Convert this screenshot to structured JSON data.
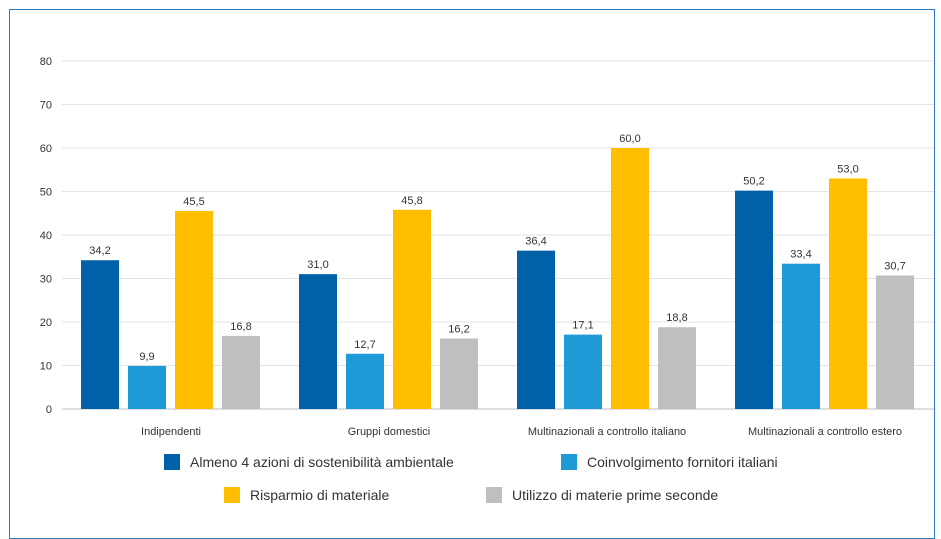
{
  "chart_data": {
    "type": "bar",
    "categories": [
      "Indipendenti",
      "Gruppi domestici",
      "Multinazionali a controllo italiano",
      "Multinazionali a controllo estero"
    ],
    "series": [
      {
        "name": "Almeno 4 azioni di sostenibilità ambientale",
        "color": "#0060a8",
        "values": [
          34.2,
          31.0,
          36.4,
          50.2
        ],
        "labels": [
          "34,2",
          "31,0",
          "36,4",
          "50,2"
        ]
      },
      {
        "name": "Coinvolgimento fornitori italiani",
        "color": "#1e9bd7",
        "values": [
          9.9,
          12.7,
          17.1,
          33.4
        ],
        "labels": [
          "9,9",
          "12,7",
          "17,1",
          "33,4"
        ]
      },
      {
        "name": "Risparmio di materiale",
        "color": "#ffbe00",
        "values": [
          45.5,
          45.8,
          60.0,
          53.0
        ],
        "labels": [
          "45,5",
          "45,8",
          "60,0",
          "53,0"
        ]
      },
      {
        "name": "Utilizzo di materie prime seconde",
        "color": "#bfbfbf",
        "values": [
          16.8,
          16.2,
          18.8,
          30.7
        ],
        "labels": [
          "16,8",
          "16,2",
          "18,8",
          "30,7"
        ]
      }
    ],
    "yticks": [
      "0",
      "10",
      "20",
      "30",
      "40",
      "50",
      "60",
      "70",
      "80"
    ],
    "ylim": [
      0,
      80
    ],
    "grid": true,
    "legend_position": "bottom"
  }
}
